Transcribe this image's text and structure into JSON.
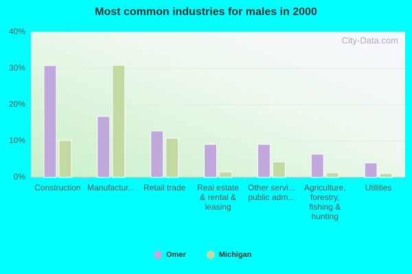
{
  "chart_data": {
    "type": "bar",
    "title": "Most common industries for males in 2000",
    "watermark": "City-Data.com",
    "categories": [
      "Construction",
      "Manufactur...",
      "Retail trade",
      "Real estate\n& rental &\nleasing",
      "Other servi...\npublic adm...",
      "Agriculture,\nforestry,\nfishing &\nhunting",
      "Utilities"
    ],
    "series": [
      {
        "name": "Omer",
        "color": "#c0a8dc",
        "values": [
          30.8,
          16.8,
          12.8,
          9.1,
          9.1,
          6.4,
          4.0
        ]
      },
      {
        "name": "Michigan",
        "color": "#c4d8a4",
        "values": [
          10.2,
          30.9,
          10.8,
          1.5,
          4.3,
          1.3,
          1.1
        ]
      }
    ],
    "ylim": [
      0,
      40
    ],
    "yticks": [
      {
        "value": 0,
        "label": "0%"
      },
      {
        "value": 10,
        "label": "10%"
      },
      {
        "value": 20,
        "label": "20%"
      },
      {
        "value": 30,
        "label": "30%"
      },
      {
        "value": 40,
        "label": "40%"
      }
    ],
    "grid": true
  }
}
